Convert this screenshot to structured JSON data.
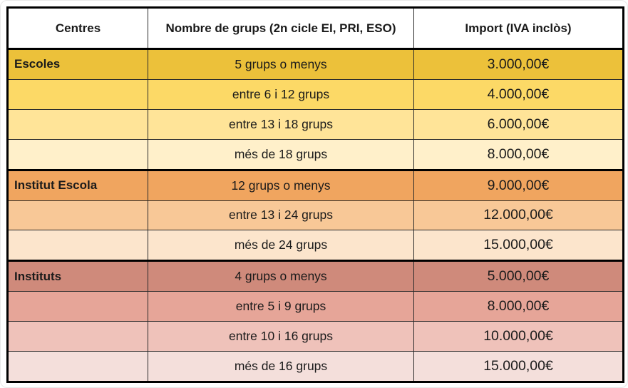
{
  "table": {
    "headers": [
      "Centres",
      "Nombre de grups (2n cicle EI, PRI, ESO)",
      "Import (IVA inclòs)"
    ],
    "rows": [
      {
        "centre": "Escoles",
        "grups": "5 grups o menys",
        "import": "3.000,00€",
        "bg": "#ecc13a",
        "section_start": true
      },
      {
        "centre": "",
        "grups": "entre 6 i 12 grups",
        "import": "4.000,00€",
        "bg": "#fcd966",
        "section_start": false
      },
      {
        "centre": "",
        "grups": "entre 13 i 18 grups",
        "import": "6.000,00€",
        "bg": "#ffe498",
        "section_start": false
      },
      {
        "centre": "",
        "grups": "més de 18 grups",
        "import": "8.000,00€",
        "bg": "#fff0ca",
        "section_start": false
      },
      {
        "centre": "Institut Escola",
        "grups": "12 grups o menys",
        "import": "9.000,00€",
        "bg": "#f0a55f",
        "section_start": true
      },
      {
        "centre": "",
        "grups": "entre 13 i 24 grups",
        "import": "12.000,00€",
        "bg": "#f8c897",
        "section_start": false
      },
      {
        "centre": "",
        "grups": "més de 24 grups",
        "import": "15.000,00€",
        "bg": "#fce5cc",
        "section_start": false
      },
      {
        "centre": "Instituts",
        "grups": "4 grups o menys",
        "import": "5.000,00€",
        "bg": "#cf8a7b",
        "section_start": true
      },
      {
        "centre": "",
        "grups": "entre 5 i 9 grups",
        "import": "8.000,00€",
        "bg": "#e6a598",
        "section_start": false
      },
      {
        "centre": "",
        "grups": "entre 10 i 16 grups",
        "import": "10.000,00€",
        "bg": "#efc2ba",
        "section_start": false
      },
      {
        "centre": "",
        "grups": "més de 16 grups",
        "import": "15.000,00€",
        "bg": "#f4dfdb",
        "section_start": false
      }
    ]
  },
  "colors": {
    "border_thick": "#000000",
    "border_thin": "#2a2a2a",
    "header_bg": "#ffffff",
    "text": "#1a1a1a"
  }
}
